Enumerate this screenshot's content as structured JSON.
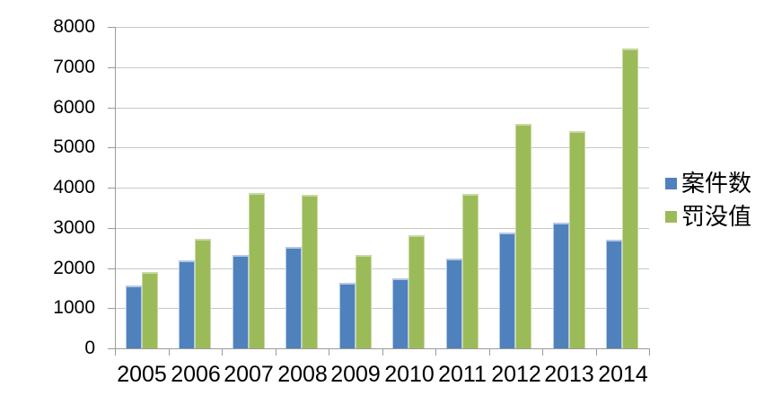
{
  "chart_data": {
    "type": "bar",
    "title": "",
    "xlabel": "",
    "ylabel": "",
    "categories": [
      "2005",
      "2006",
      "2007",
      "2008",
      "2009",
      "2010",
      "2011",
      "2012",
      "2013",
      "2014"
    ],
    "series": [
      {
        "name": "案件数",
        "color": "#4f81bd",
        "highlight_color": "#b5c9e4",
        "values": [
          1560,
          2190,
          2320,
          2520,
          1640,
          1740,
          2240,
          2890,
          3130,
          2710
        ]
      },
      {
        "name": "罚没值",
        "color": "#9bbb59",
        "highlight_color": "#c8d9a4",
        "values": [
          1900,
          2730,
          3870,
          3820,
          2330,
          2820,
          3850,
          5580,
          5400,
          7470
        ]
      }
    ],
    "ylim": [
      0,
      8000
    ],
    "ytick_step": 1000,
    "ytick_labels": [
      "0",
      "1000",
      "2000",
      "3000",
      "4000",
      "5000",
      "6000",
      "7000",
      "8000"
    ],
    "grid": true,
    "legend_position": "right",
    "axis_color": "#9b9b9b",
    "gridline_color": "#c7c7c7"
  }
}
